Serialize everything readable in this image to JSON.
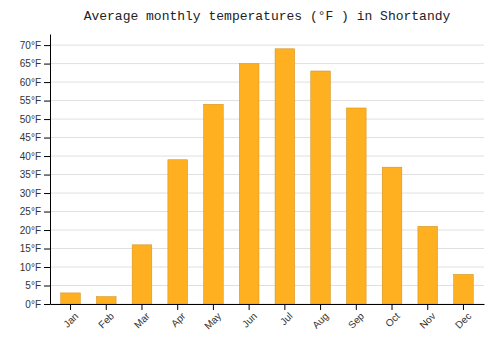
{
  "chart_data": {
    "type": "bar",
    "title": "Average monthly temperatures (°F ) in Shortandy",
    "categories": [
      "Jan",
      "Feb",
      "Mar",
      "Apr",
      "May",
      "Jun",
      "Jul",
      "Aug",
      "Sep",
      "Oct",
      "Nov",
      "Dec"
    ],
    "values": [
      3,
      2,
      16,
      39,
      54,
      65,
      69,
      63,
      53,
      37,
      21,
      8
    ],
    "color": "#FFB020",
    "ylim": [
      0,
      73
    ],
    "yticks": [
      {
        "value": 0,
        "label": "0°F"
      },
      {
        "value": 5,
        "label": "5°F"
      },
      {
        "value": 10,
        "label": "10°F"
      },
      {
        "value": 15,
        "label": "15°F"
      },
      {
        "value": 20,
        "label": "20°F"
      },
      {
        "value": 25,
        "label": "25°F"
      },
      {
        "value": 30,
        "label": "30°F"
      },
      {
        "value": 35,
        "label": "35°F"
      },
      {
        "value": 40,
        "label": "40°F"
      },
      {
        "value": 45,
        "label": "45°F"
      },
      {
        "value": 50,
        "label": "50°F"
      },
      {
        "value": 55,
        "label": "55°F"
      },
      {
        "value": 60,
        "label": "60°F"
      },
      {
        "value": 65,
        "label": "65°F"
      },
      {
        "value": 70,
        "label": "70°F"
      }
    ],
    "grid": true
  }
}
